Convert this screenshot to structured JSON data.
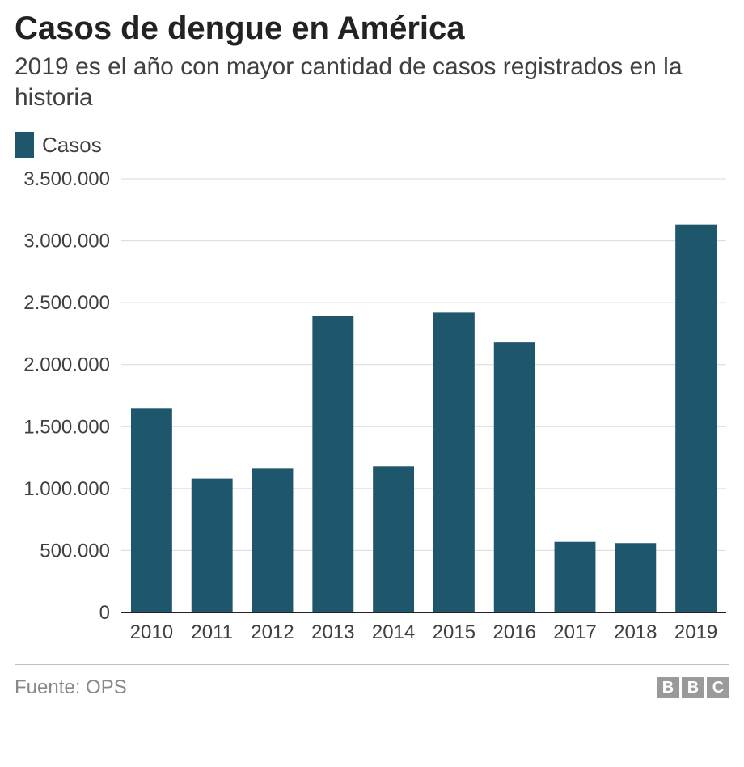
{
  "title": "Casos de dengue en América",
  "subtitle": "2019 es el año con mayor cantidad de casos registrados en la historia",
  "legend": {
    "label": "Casos",
    "swatch_color": "#1e566b"
  },
  "chart": {
    "type": "bar",
    "categories": [
      "2010",
      "2011",
      "2012",
      "2013",
      "2014",
      "2015",
      "2016",
      "2017",
      "2018",
      "2019"
    ],
    "values": [
      1650000,
      1080000,
      1160000,
      2390000,
      1180000,
      2420000,
      2180000,
      570000,
      560000,
      3130000
    ],
    "bar_color": "#1e566b",
    "bar_width_ratio": 0.68,
    "ylim": [
      0,
      3500000
    ],
    "ytick_step": 500000,
    "ytick_labels": [
      "0",
      "500.000",
      "1.000.000",
      "1.500.000",
      "2.000.000",
      "2.500.000",
      "3.000.000",
      "3.500.000"
    ],
    "grid_color": "#d9d9d9",
    "baseline_color": "#222222",
    "axis_label_color": "#404040",
    "axis_fontsize": 24,
    "background_color": "#ffffff"
  },
  "footer": {
    "source": "Fuente: OPS",
    "logo_letters": [
      "B",
      "B",
      "C"
    ],
    "logo_bg": "#9a9a9a",
    "logo_fg": "#ffffff",
    "rule_color": "#bfbfbf"
  }
}
